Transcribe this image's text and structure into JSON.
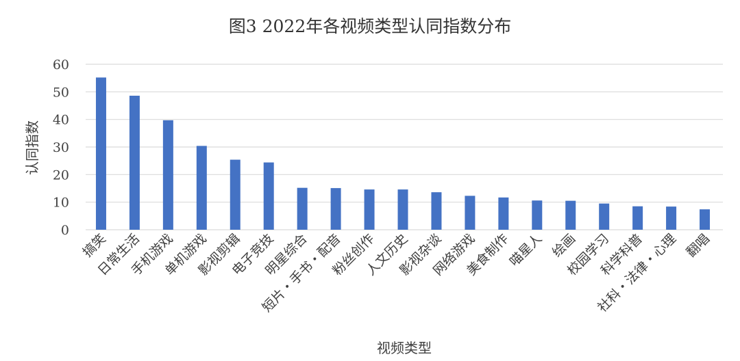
{
  "chart_data": {
    "type": "bar",
    "title": "图3 2022年各视频类型认同指数分布",
    "xlabel": "视频类型",
    "ylabel": "认同指数",
    "ylim": [
      0,
      60
    ],
    "yticks": [
      "0",
      "10",
      "20",
      "30",
      "40",
      "50",
      "60"
    ],
    "grid": true,
    "categories": [
      "搞笑",
      "日常生活",
      "手机游戏",
      "单机游戏",
      "影视剪辑",
      "电子竞技",
      "明星综合",
      "短片・手书・配音",
      "粉丝创作",
      "人文历史",
      "影视杂谈",
      "网络游戏",
      "美食制作",
      "喵星人",
      "绘画",
      "校园学习",
      "科学科普",
      "社科・法律・心理",
      "翻唱"
    ],
    "values": [
      55.2,
      48.6,
      39.7,
      30.4,
      25.4,
      24.4,
      15.2,
      15.1,
      14.6,
      14.6,
      13.6,
      12.3,
      11.7,
      10.6,
      10.5,
      9.5,
      8.5,
      8.4,
      7.4
    ],
    "color": "#4472c4"
  }
}
